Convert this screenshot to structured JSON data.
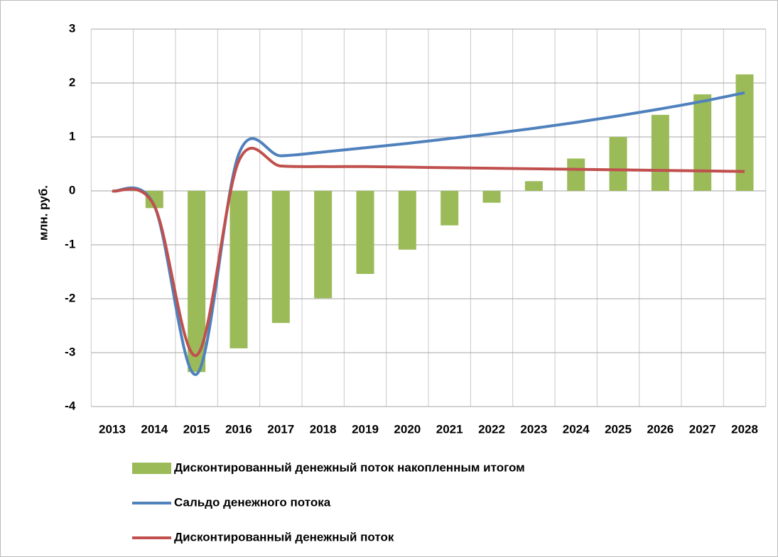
{
  "chart_data": {
    "type": "bar_line",
    "y_label": "млн. руб.",
    "categories": [
      "2013",
      "2014",
      "2015",
      "2016",
      "2017",
      "2018",
      "2019",
      "2020",
      "2021",
      "2022",
      "2023",
      "2024",
      "2025",
      "2026",
      "2027",
      "2028"
    ],
    "series": [
      {
        "name": "Дисконтированный денежный поток накопленным итогом",
        "type": "bar",
        "color": "#9bbb59",
        "values": [
          0,
          -0.32,
          -3.36,
          -2.92,
          -2.45,
          -1.99,
          -1.54,
          -1.09,
          -0.64,
          -0.22,
          0.18,
          0.6,
          1.0,
          1.41,
          1.79,
          2.16
        ]
      },
      {
        "name": "Сальдо денежного потока",
        "type": "line",
        "color": "#4f81bd",
        "values": [
          0,
          -0.28,
          -3.4,
          0.68,
          0.65,
          0.72,
          0.8,
          0.88,
          0.97,
          1.06,
          1.16,
          1.27,
          1.39,
          1.52,
          1.66,
          1.82
        ]
      },
      {
        "name": "Дисконтированный денежный поток",
        "type": "line",
        "color": "#c0504d",
        "values": [
          0,
          -0.28,
          -3.05,
          0.55,
          0.46,
          0.45,
          0.45,
          0.44,
          0.43,
          0.42,
          0.41,
          0.4,
          0.39,
          0.38,
          0.37,
          0.36
        ]
      }
    ],
    "ylim": [
      -4,
      3
    ],
    "yticks": [
      -4,
      -3,
      -2,
      -1,
      0,
      1,
      2,
      3
    ],
    "grid": true,
    "legend": "bottom"
  }
}
